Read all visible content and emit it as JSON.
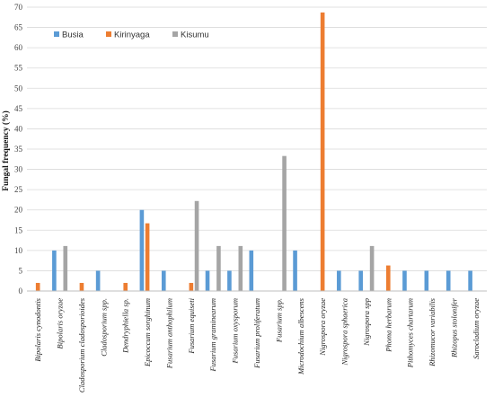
{
  "chart_data": {
    "type": "bar",
    "title": "",
    "xlabel": "",
    "ylabel": "Fungal frequency (%)",
    "ylim": [
      0,
      70
    ],
    "yticks": [
      0,
      5,
      10,
      15,
      20,
      25,
      30,
      35,
      40,
      45,
      50,
      55,
      60,
      65,
      70
    ],
    "grid": "horizontal",
    "legend_position": "top-left",
    "categories": [
      "Bipolaris cynodontis",
      "Bipolaris oryzae",
      "Cladosporium cladosporioides",
      "Cladosporium spp.",
      "Dendryphiella sp.",
      "Epicoccum sorghinum",
      "Fusarium anthophilum",
      "Fusarium equiseti",
      "Fusarium graminearum",
      "Fusarium oxysporum",
      "Fusarium proliferatum",
      "Fusarium spp.",
      "Microdochium albescens",
      "Nigrospora oryzae",
      "Nigrospora sphaerica",
      "Nigrospora spp",
      "Phoma herbarum",
      "Pithomyces chartarum",
      "Rhizomucor variabilis",
      "Rhizopus stolonifer",
      "Sarocladium oryzae"
    ],
    "series": [
      {
        "name": "Busia",
        "color": "#5b9bd5",
        "values": [
          0,
          10,
          0,
          5,
          0,
          20,
          5,
          0,
          5,
          5,
          10,
          0,
          10,
          0,
          5,
          5,
          0,
          5,
          5,
          5,
          5
        ]
      },
      {
        "name": "Kirinyaga",
        "color": "#ed7d31",
        "values": [
          2,
          0,
          2,
          0,
          2,
          16.7,
          0,
          2,
          0,
          0,
          0,
          0,
          0,
          68.7,
          0,
          0,
          6.3,
          0,
          0,
          0,
          0
        ]
      },
      {
        "name": "Kisumu",
        "color": "#a5a5a5",
        "values": [
          0,
          11.1,
          0,
          0,
          0,
          0,
          0,
          22.2,
          11.1,
          11.1,
          0,
          33.3,
          0,
          0,
          0,
          11.1,
          0,
          0,
          0,
          0,
          0
        ]
      }
    ]
  }
}
